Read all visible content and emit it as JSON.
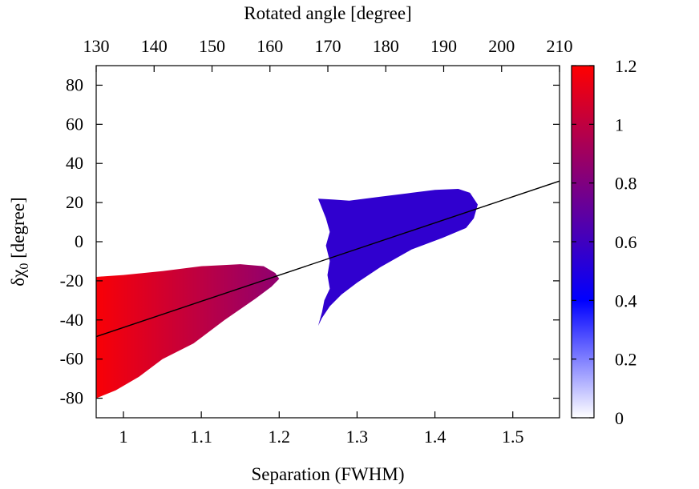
{
  "chart_data": {
    "type": "heatmap",
    "xlabel": "Separation (FWHM)",
    "x2label": "Rotated angle [degree]",
    "ylabel_parts": {
      "main": "δχ",
      "sub": "0",
      "suffix": " [degree]"
    },
    "xlim": [
      0.965,
      1.56
    ],
    "x2lim": [
      130,
      210
    ],
    "ylim": [
      -90,
      90
    ],
    "xticks": [
      {
        "v": 1,
        "label": "1"
      },
      {
        "v": 1.1,
        "label": "1.1"
      },
      {
        "v": 1.2,
        "label": "1.2"
      },
      {
        "v": 1.3,
        "label": "1.3"
      },
      {
        "v": 1.4,
        "label": "1.4"
      },
      {
        "v": 1.5,
        "label": "1.5"
      }
    ],
    "x2ticks": [
      {
        "v": 130,
        "label": "130"
      },
      {
        "v": 140,
        "label": "140"
      },
      {
        "v": 150,
        "label": "150"
      },
      {
        "v": 160,
        "label": "160"
      },
      {
        "v": 170,
        "label": "170"
      },
      {
        "v": 180,
        "label": "180"
      },
      {
        "v": 190,
        "label": "190"
      },
      {
        "v": 200,
        "label": "200"
      },
      {
        "v": 210,
        "label": "210"
      }
    ],
    "yticks": [
      {
        "v": 80,
        "label": "80"
      },
      {
        "v": 60,
        "label": "60"
      },
      {
        "v": 40,
        "label": "40"
      },
      {
        "v": 20,
        "label": "20"
      },
      {
        "v": 0,
        "label": "0"
      },
      {
        "v": -20,
        "label": "-20"
      },
      {
        "v": -40,
        "label": "-40"
      },
      {
        "v": -60,
        "label": "-60"
      },
      {
        "v": -80,
        "label": "-80"
      }
    ],
    "colorbar": {
      "range": [
        0,
        1.2
      ],
      "ticks": [
        {
          "v": 0,
          "label": "0"
        },
        {
          "v": 0.2,
          "label": "0.2"
        },
        {
          "v": 0.4,
          "label": "0.4"
        },
        {
          "v": 0.6,
          "label": "0.6"
        },
        {
          "v": 0.8,
          "label": "0.8"
        },
        {
          "v": 1,
          "label": "1"
        },
        {
          "v": 1.2,
          "label": "1.2"
        }
      ],
      "colors": {
        "0": "#ffffff",
        "0.4": "#0000ff",
        "1.2": "#ff0000"
      }
    },
    "regions": [
      {
        "name": "red-region",
        "value_range": [
          0.8,
          1.2
        ],
        "value_left": 1.18,
        "value_right": 0.85,
        "outline": [
          [
            0.965,
            -18
          ],
          [
            1.0,
            -17
          ],
          [
            1.05,
            -15
          ],
          [
            1.1,
            -12.5
          ],
          [
            1.15,
            -11.5
          ],
          [
            1.18,
            -12.5
          ],
          [
            1.195,
            -16
          ],
          [
            1.2,
            -19
          ],
          [
            1.19,
            -23
          ],
          [
            1.17,
            -29
          ],
          [
            1.13,
            -40
          ],
          [
            1.09,
            -52
          ],
          [
            1.05,
            -60
          ],
          [
            1.02,
            -69
          ],
          [
            0.99,
            -76
          ],
          [
            0.965,
            -80
          ]
        ]
      },
      {
        "name": "blue-region",
        "value_range": [
          0.5,
          0.65
        ],
        "value_left": 0.55,
        "value_right": 0.55,
        "outline": [
          [
            1.25,
            22
          ],
          [
            1.27,
            21.5
          ],
          [
            1.29,
            21
          ],
          [
            1.33,
            23
          ],
          [
            1.37,
            25
          ],
          [
            1.4,
            26.5
          ],
          [
            1.43,
            27
          ],
          [
            1.445,
            25
          ],
          [
            1.455,
            19
          ],
          [
            1.45,
            12
          ],
          [
            1.44,
            7
          ],
          [
            1.41,
            2
          ],
          [
            1.37,
            -4
          ],
          [
            1.33,
            -13
          ],
          [
            1.3,
            -21
          ],
          [
            1.28,
            -27
          ],
          [
            1.265,
            -33
          ],
          [
            1.255,
            -39
          ],
          [
            1.25,
            -43
          ],
          [
            1.255,
            -36
          ],
          [
            1.258,
            -30
          ],
          [
            1.265,
            -24
          ],
          [
            1.262,
            -17
          ],
          [
            1.265,
            -10
          ],
          [
            1.26,
            -2
          ],
          [
            1.265,
            5
          ],
          [
            1.26,
            12
          ],
          [
            1.255,
            17
          ]
        ]
      }
    ],
    "fit_line": {
      "x": [
        0.965,
        1.56
      ],
      "y": [
        -48.5,
        31
      ]
    }
  }
}
